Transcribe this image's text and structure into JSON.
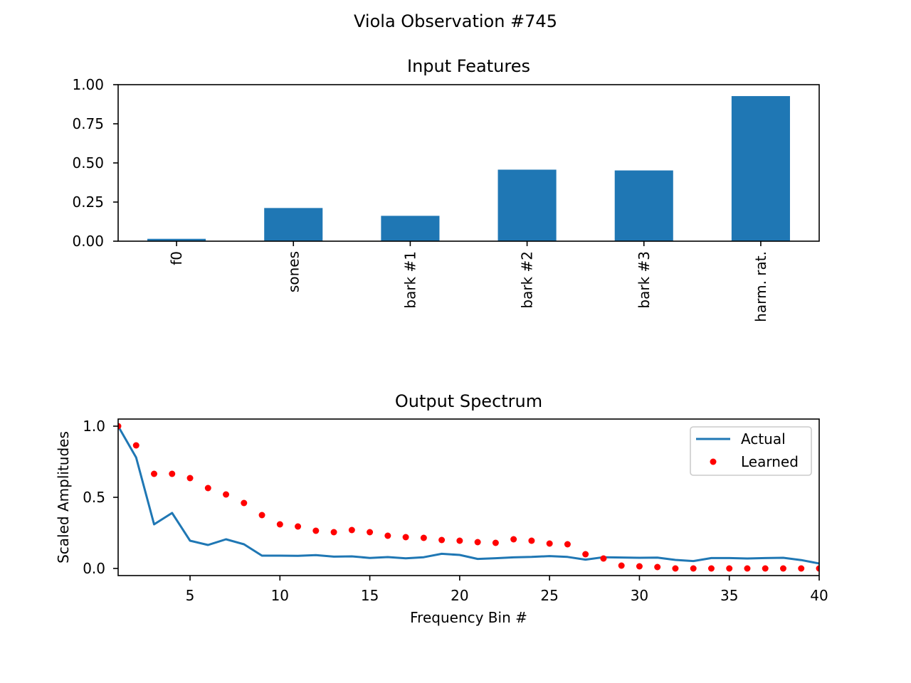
{
  "figure": {
    "suptitle": "Viola  Observation #745"
  },
  "colors": {
    "bar": "#1f77b4",
    "actual_line": "#1f77b4",
    "learned_points": "#ff0000"
  },
  "chart_data": [
    {
      "type": "bar",
      "title": "Input Features",
      "categories": [
        "f0",
        "sones",
        "bark #1",
        "bark #2",
        "bark #3",
        "harm. rat."
      ],
      "values": [
        0.015,
        0.212,
        0.162,
        0.457,
        0.452,
        0.927
      ],
      "ylim": [
        0,
        1.0
      ],
      "yticks": [
        0.0,
        0.25,
        0.5,
        0.75,
        1.0
      ],
      "ytick_labels": [
        "0.00",
        "0.25",
        "0.50",
        "0.75",
        "1.00"
      ],
      "xlabel": "",
      "ylabel": "",
      "grid": false
    },
    {
      "type": "line",
      "title": "Output Spectrum",
      "xlabel": "Frequency Bin #",
      "ylabel": "Scaled Amplitudes",
      "xlim": [
        1,
        40
      ],
      "ylim": [
        -0.05,
        1.05
      ],
      "xticks": [
        5,
        10,
        15,
        20,
        25,
        30,
        35,
        40
      ],
      "xtick_labels": [
        "5",
        "10",
        "15",
        "20",
        "25",
        "30",
        "35",
        "40"
      ],
      "yticks": [
        0.0,
        0.5,
        1.0
      ],
      "ytick_labels": [
        "0.0",
        "0.5",
        "1.0"
      ],
      "legend": "top-right",
      "grid": false,
      "x": [
        1,
        2,
        3,
        4,
        5,
        6,
        7,
        8,
        9,
        10,
        11,
        12,
        13,
        14,
        15,
        16,
        17,
        18,
        19,
        20,
        21,
        22,
        23,
        24,
        25,
        26,
        27,
        28,
        29,
        30,
        31,
        32,
        33,
        34,
        35,
        36,
        37,
        38,
        39,
        40
      ],
      "series": [
        {
          "name": "Actual",
          "style": "line",
          "values": [
            1.0,
            0.78,
            0.31,
            0.39,
            0.195,
            0.165,
            0.205,
            0.17,
            0.09,
            0.09,
            0.089,
            0.094,
            0.083,
            0.085,
            0.074,
            0.08,
            0.071,
            0.079,
            0.103,
            0.095,
            0.067,
            0.072,
            0.078,
            0.081,
            0.087,
            0.081,
            0.062,
            0.079,
            0.077,
            0.075,
            0.076,
            0.06,
            0.052,
            0.073,
            0.073,
            0.07,
            0.073,
            0.075,
            0.059,
            0.035
          ]
        },
        {
          "name": "Learned",
          "style": "points",
          "values": [
            1.0,
            0.865,
            0.665,
            0.665,
            0.635,
            0.565,
            0.52,
            0.46,
            0.375,
            0.31,
            0.295,
            0.265,
            0.255,
            0.27,
            0.255,
            0.23,
            0.22,
            0.215,
            0.2,
            0.195,
            0.185,
            0.18,
            0.205,
            0.195,
            0.175,
            0.17,
            0.1,
            0.07,
            0.02,
            0.015,
            0.01,
            0.0,
            0.0,
            0.0,
            0.0,
            0.0,
            0.0,
            0.0,
            0.0,
            0.0
          ]
        }
      ]
    }
  ]
}
